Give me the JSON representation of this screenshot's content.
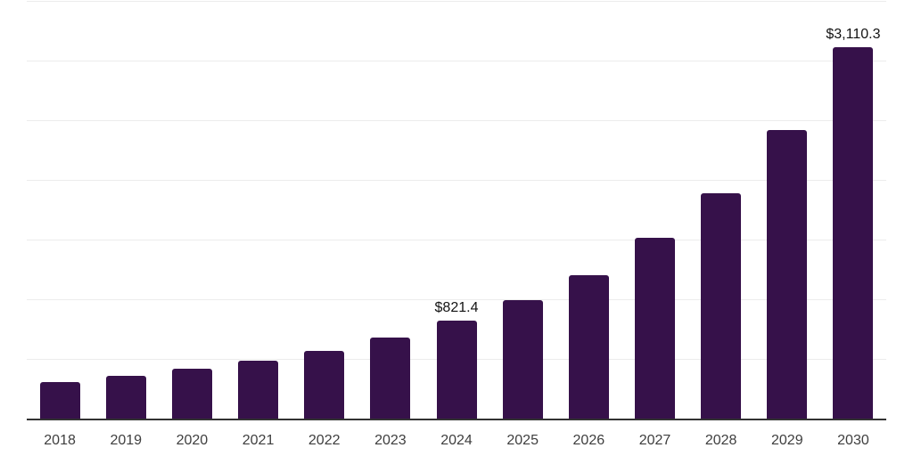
{
  "chart_data": {
    "type": "bar",
    "title": "",
    "xlabel": "",
    "ylabel": "",
    "categories": [
      "2018",
      "2019",
      "2020",
      "2021",
      "2022",
      "2023",
      "2024",
      "2025",
      "2026",
      "2027",
      "2028",
      "2029",
      "2030"
    ],
    "values": [
      303,
      358,
      415,
      484,
      566,
      676,
      821.4,
      989,
      1205,
      1513,
      1891,
      2417,
      3110.3
    ],
    "data_labels": {
      "2024": "$821.4",
      "2030": "$3,110.3"
    },
    "ylim": [
      0,
      3500
    ],
    "gridline_step": 500,
    "grid": "horizontal",
    "y_tick_labels_visible": false,
    "legend_position": "none",
    "colors": {
      "bar": "#36114a",
      "axis": "#333333",
      "gridline": "#ececec",
      "tick_label": "#3e3e3e",
      "data_label": "#131313",
      "background": "#ffffff"
    }
  }
}
